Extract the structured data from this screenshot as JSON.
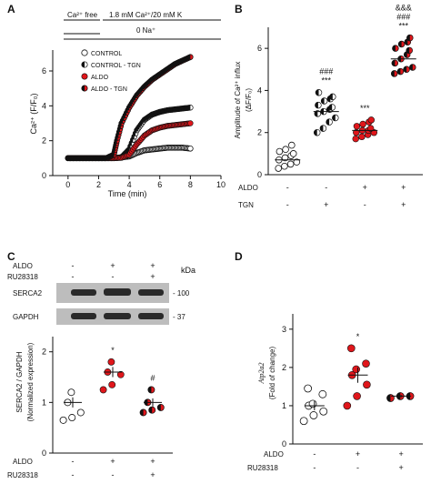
{
  "panels": {
    "a": "A",
    "b": "B",
    "c": "C",
    "d": "D"
  },
  "colors": {
    "red": "#e0161b",
    "black": "#111111",
    "band": "#2a2a2a",
    "blot": "#bdbdbd"
  },
  "chart_data": [
    {
      "panel": "A",
      "type": "scatter",
      "protocol": {
        "free_label": "Ca²⁺ free",
        "bath_label": "1.8 mM Ca²⁺/20 mM K",
        "na_label": "0 Na⁺"
      },
      "xlabel": "Time (min)",
      "ylabel": "Ca²⁺ (F/F₀)",
      "xlim": [
        -1,
        10
      ],
      "ylim": [
        0,
        7.2
      ],
      "xticks": [
        0,
        2,
        4,
        6,
        8,
        10
      ],
      "yticks": [
        0,
        2,
        4,
        6
      ],
      "series": [
        {
          "name": "CONTROL",
          "marker": "open",
          "x": [
            0,
            0.5,
            1,
            1.5,
            2,
            2.5,
            3,
            3.5,
            4,
            4.5,
            5,
            5.5,
            6,
            6.5,
            7,
            7.5,
            8
          ],
          "y": [
            1,
            1,
            1,
            1,
            1,
            1,
            1,
            1.05,
            1.1,
            1.3,
            1.45,
            1.5,
            1.55,
            1.6,
            1.6,
            1.6,
            1.55
          ]
        },
        {
          "name": "CONTROL - TGN",
          "marker": "half",
          "x": [
            0,
            0.5,
            1,
            1.5,
            2,
            2.5,
            3,
            3.5,
            4,
            4.5,
            5,
            5.5,
            6,
            6.5,
            7,
            7.5,
            8
          ],
          "y": [
            1,
            1,
            1,
            1,
            1,
            1,
            1,
            1.05,
            1.5,
            2.6,
            3.2,
            3.5,
            3.65,
            3.75,
            3.8,
            3.85,
            3.9
          ]
        },
        {
          "name": "ALDO",
          "marker": "red",
          "x": [
            0,
            0.5,
            1,
            1.5,
            2,
            2.5,
            3,
            3.5,
            4,
            4.5,
            5,
            5.5,
            6,
            6.5,
            7,
            7.5,
            8
          ],
          "y": [
            1,
            1,
            1,
            1,
            1,
            1,
            1,
            1.02,
            1.2,
            1.8,
            2.3,
            2.6,
            2.75,
            2.85,
            2.9,
            2.95,
            3.0
          ]
        },
        {
          "name": "ALDO - TGN",
          "marker": "red-half",
          "x": [
            0,
            0.5,
            1,
            1.5,
            2,
            2.5,
            3,
            3.2,
            3.5,
            4,
            4.5,
            5,
            5.5,
            6,
            6.5,
            7,
            7.5,
            8
          ],
          "y": [
            1,
            1,
            1,
            1,
            1,
            1,
            1.2,
            2.0,
            3.0,
            3.9,
            4.6,
            5.1,
            5.5,
            5.8,
            6.1,
            6.4,
            6.6,
            6.8
          ]
        }
      ]
    },
    {
      "panel": "B",
      "type": "scatter",
      "ylabel_line1": "Amplitude of Ca²⁺ influx",
      "ylabel_line2": "(ΔF/F₀)",
      "ylim": [
        0,
        7
      ],
      "yticks": [
        0,
        2,
        4,
        6
      ],
      "row_labels": [
        "ALDO",
        "TGN"
      ],
      "groups": [
        {
          "aldo": "-",
          "tgn": "-",
          "marker": "open",
          "values": [
            0.3,
            0.4,
            0.5,
            0.6,
            0.7,
            0.8,
            0.9,
            1.0,
            1.1,
            1.2,
            1.4
          ],
          "mean": 0.7,
          "sig": []
        },
        {
          "aldo": "-",
          "tgn": "+",
          "marker": "half",
          "values": [
            2.0,
            2.2,
            2.5,
            2.7,
            2.9,
            3.0,
            3.1,
            3.2,
            3.3,
            3.5,
            3.6,
            3.7,
            3.9
          ],
          "mean": 3.0,
          "sig": [
            "###",
            "***"
          ]
        },
        {
          "aldo": "+",
          "tgn": "-",
          "marker": "red",
          "values": [
            1.7,
            1.8,
            1.9,
            2.0,
            2.0,
            2.1,
            2.1,
            2.2,
            2.3,
            2.4,
            2.5,
            2.6
          ],
          "mean": 2.1,
          "sig": [
            "***"
          ]
        },
        {
          "aldo": "+",
          "tgn": "+",
          "marker": "red-half",
          "values": [
            4.8,
            4.9,
            5.0,
            5.1,
            5.3,
            5.5,
            5.7,
            5.9,
            6.0,
            6.2,
            6.3,
            6.5
          ],
          "mean": 5.5,
          "sig": [
            "&&&",
            "###",
            "***"
          ]
        }
      ]
    },
    {
      "panel": "C",
      "type": "scatter",
      "kda_label": "kDa",
      "blot_rows": [
        {
          "label": "SERCA2",
          "kda": "- 100"
        },
        {
          "label": "GAPDH",
          "kda": "- 37"
        }
      ],
      "ylabel_line1": "SERCA2 / GAPDH",
      "ylabel_line2": "(Normalized expression)",
      "ylim": [
        0,
        2.3
      ],
      "yticks": [
        0,
        1,
        2
      ],
      "row_labels": [
        "ALDO",
        "RU28318"
      ],
      "groups": [
        {
          "aldo": "-",
          "ru": "-",
          "marker": "open",
          "values": [
            0.65,
            0.7,
            0.8,
            1.0,
            1.2
          ],
          "mean": 1.0,
          "sem": 0.1,
          "sig": []
        },
        {
          "aldo": "+",
          "ru": "-",
          "marker": "red",
          "values": [
            1.25,
            1.35,
            1.55,
            1.6,
            1.8
          ],
          "mean": 1.6,
          "sem": 0.1,
          "sig": [
            "*"
          ]
        },
        {
          "aldo": "+",
          "ru": "+",
          "marker": "red-half",
          "values": [
            0.8,
            0.85,
            0.9,
            1.0,
            1.25
          ],
          "mean": 1.0,
          "sem": 0.08,
          "sig": [
            "#"
          ]
        }
      ]
    },
    {
      "panel": "D",
      "type": "scatter",
      "ylabel_line1": "Atp2a2",
      "ylabel_line2": "(Fold of change)",
      "ylim": [
        0,
        3.4
      ],
      "yticks": [
        0,
        1,
        2,
        3
      ],
      "row_labels": [
        "ALDO",
        "RU28318"
      ],
      "groups": [
        {
          "aldo": "-",
          "ru": "-",
          "marker": "open",
          "values": [
            0.6,
            0.75,
            0.85,
            1.0,
            1.05,
            1.3,
            1.45
          ],
          "mean": 1.0,
          "sem": 0.12,
          "sig": []
        },
        {
          "aldo": "+",
          "ru": "-",
          "marker": "red",
          "values": [
            1.0,
            1.25,
            1.55,
            1.8,
            1.95,
            2.1,
            2.5
          ],
          "mean": 1.8,
          "sem": 0.2,
          "sig": [
            "*"
          ]
        },
        {
          "aldo": "+",
          "ru": "+",
          "marker": "red-half",
          "values": [
            1.2,
            1.25,
            1.25
          ],
          "mean": 1.25,
          "sem": 0.03,
          "sig": []
        }
      ]
    }
  ]
}
